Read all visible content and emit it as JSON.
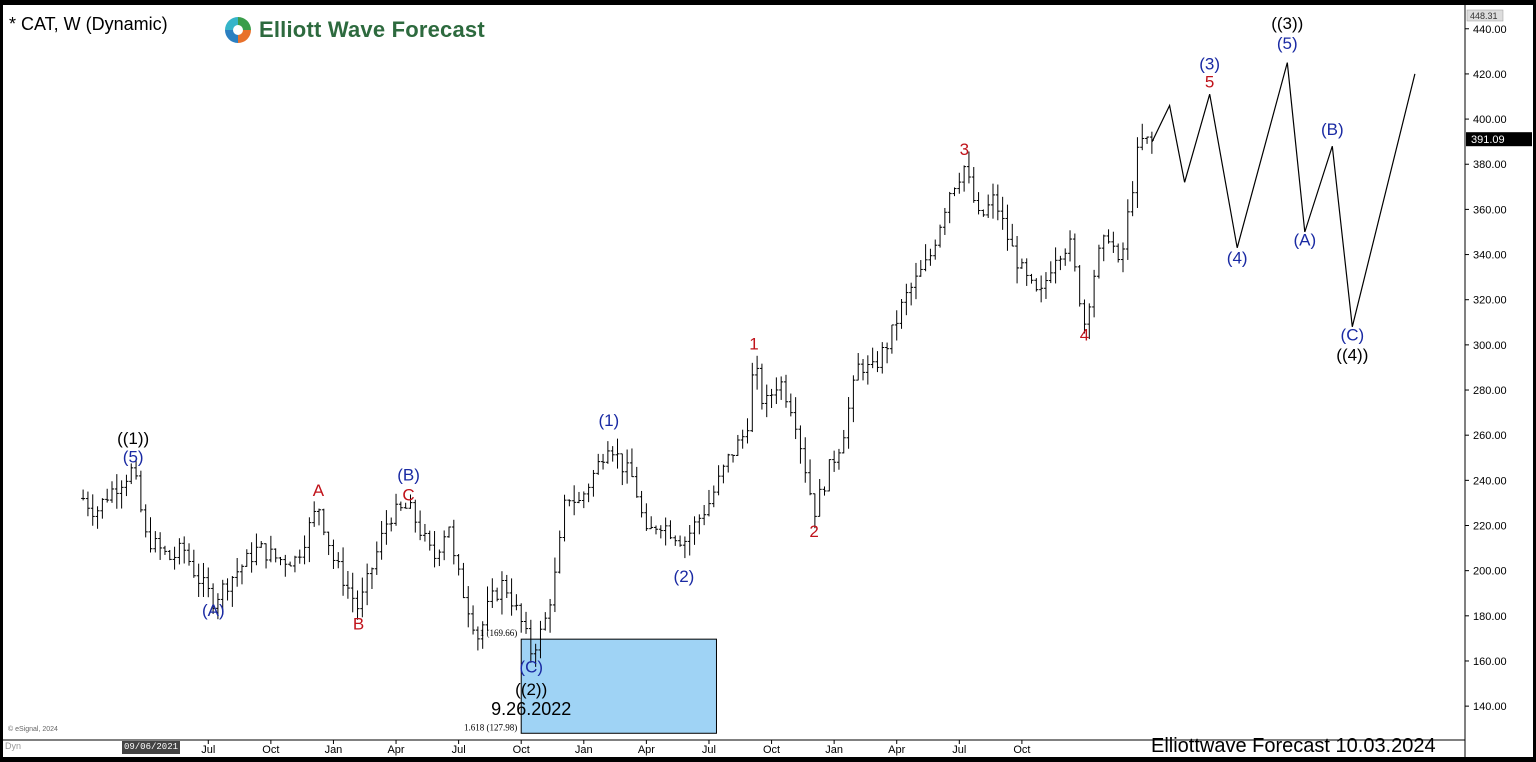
{
  "header": {
    "symbol": "* CAT, W (Dynamic)",
    "logo_text": "Elliott Wave Forecast"
  },
  "footer": {
    "label": "Elliottwave Forecast 10.03.2024",
    "esignal": "© eSignal, 2024",
    "dyn": "Dyn",
    "cursor_date": "09/06/2021"
  },
  "colors": {
    "blue": "#1a2aa3",
    "red": "#c0121a",
    "black": "#000000",
    "zone_fill": "#9fd3f5"
  },
  "chart_data": {
    "type": "line",
    "title": "",
    "ylim": [
      125,
      448.31
    ],
    "y_ticks": [
      140,
      160,
      180,
      200,
      220,
      240,
      260,
      280,
      300,
      320,
      340,
      360,
      380,
      400,
      420,
      440
    ],
    "x_ticks": [
      {
        "label": "Jul",
        "t": 0.5
      },
      {
        "label": "Oct",
        "t": 0.75
      },
      {
        "label": "Jan",
        "t": 1.0
      },
      {
        "label": "Apr",
        "t": 1.25
      },
      {
        "label": "Jul",
        "t": 1.5
      },
      {
        "label": "Oct",
        "t": 1.75
      },
      {
        "label": "Jan",
        "t": 2.0
      },
      {
        "label": "Apr",
        "t": 2.25
      },
      {
        "label": "Jul",
        "t": 2.5
      },
      {
        "label": "Oct",
        "t": 2.75
      },
      {
        "label": "Jan",
        "t": 3.0
      },
      {
        "label": "Apr",
        "t": 3.25
      },
      {
        "label": "Jul",
        "t": 3.5
      },
      {
        "label": "Oct",
        "t": 3.75
      }
    ],
    "price_top_label": "448.31",
    "last_price": 391.09,
    "last_price_label": "391.09",
    "price_path": [
      [
        0.0,
        232
      ],
      [
        0.05,
        226
      ],
      [
        0.1,
        234
      ],
      [
        0.2,
        245
      ],
      [
        0.25,
        215
      ],
      [
        0.35,
        205
      ],
      [
        0.4,
        210
      ],
      [
        0.45,
        198
      ],
      [
        0.52,
        187
      ],
      [
        0.6,
        198
      ],
      [
        0.7,
        210
      ],
      [
        0.78,
        205
      ],
      [
        0.85,
        205
      ],
      [
        0.94,
        229
      ],
      [
        1.0,
        205
      ],
      [
        1.1,
        183
      ],
      [
        1.15,
        200
      ],
      [
        1.22,
        224
      ],
      [
        1.3,
        228
      ],
      [
        1.32,
        224
      ],
      [
        1.4,
        205
      ],
      [
        1.46,
        222
      ],
      [
        1.48,
        205
      ],
      [
        1.52,
        190
      ],
      [
        1.58,
        170
      ],
      [
        1.62,
        185
      ],
      [
        1.68,
        195
      ],
      [
        1.74,
        180
      ],
      [
        1.79,
        164
      ],
      [
        1.84,
        175
      ],
      [
        1.89,
        200
      ],
      [
        1.93,
        234
      ],
      [
        1.98,
        230
      ],
      [
        2.05,
        245
      ],
      [
        2.1,
        258
      ],
      [
        2.15,
        247
      ],
      [
        2.2,
        240
      ],
      [
        2.25,
        215
      ],
      [
        2.3,
        222
      ],
      [
        2.4,
        213
      ],
      [
        2.5,
        230
      ],
      [
        2.58,
        250
      ],
      [
        2.65,
        262
      ],
      [
        2.68,
        292
      ],
      [
        2.72,
        272
      ],
      [
        2.78,
        285
      ],
      [
        2.84,
        270
      ],
      [
        2.88,
        248
      ],
      [
        2.92,
        226
      ],
      [
        2.98,
        245
      ],
      [
        3.03,
        258
      ],
      [
        3.1,
        292
      ],
      [
        3.15,
        288
      ],
      [
        3.22,
        302
      ],
      [
        3.28,
        320
      ],
      [
        3.38,
        338
      ],
      [
        3.46,
        368
      ],
      [
        3.52,
        379
      ],
      [
        3.58,
        355
      ],
      [
        3.64,
        365
      ],
      [
        3.7,
        345
      ],
      [
        3.76,
        330
      ],
      [
        3.82,
        320
      ],
      [
        3.88,
        340
      ],
      [
        3.94,
        345
      ],
      [
        4.0,
        310
      ],
      [
        4.05,
        338
      ],
      [
        4.1,
        350
      ],
      [
        4.14,
        332
      ],
      [
        4.18,
        362
      ],
      [
        4.22,
        390
      ],
      [
        4.27,
        390
      ]
    ],
    "projection_path": [
      [
        4.27,
        390
      ],
      [
        4.34,
        406
      ],
      [
        4.4,
        372
      ],
      [
        4.5,
        411
      ],
      [
        4.61,
        343
      ],
      [
        4.81,
        425
      ],
      [
        4.88,
        350
      ],
      [
        4.99,
        388
      ],
      [
        5.07,
        308
      ],
      [
        5.32,
        420
      ]
    ],
    "fib_zone": {
      "t_start": 1.75,
      "t_end": 2.53,
      "top": 169.66,
      "bottom": 127.98,
      "top_label": "1 (169.66)",
      "bottom_label": "1.618 (127.98)"
    },
    "annotations": [
      {
        "text": "((1))",
        "t": 0.2,
        "y": 256,
        "color": "black"
      },
      {
        "text": "(5)",
        "t": 0.2,
        "y": 248,
        "color": "blue"
      },
      {
        "text": "(A)",
        "t": 0.52,
        "y": 180,
        "color": "blue"
      },
      {
        "text": "A",
        "t": 0.94,
        "y": 233,
        "color": "red"
      },
      {
        "text": "B",
        "t": 1.1,
        "y": 174,
        "color": "red"
      },
      {
        "text": "(B)",
        "t": 1.3,
        "y": 240,
        "color": "blue"
      },
      {
        "text": "C",
        "t": 1.3,
        "y": 231,
        "color": "red"
      },
      {
        "text": "(C)",
        "t": 1.79,
        "y": 155,
        "color": "blue"
      },
      {
        "text": "((2))",
        "t": 1.79,
        "y": 145,
        "color": "black"
      },
      {
        "text": "9.26.2022",
        "t": 1.79,
        "y": 136,
        "color": "black"
      },
      {
        "text": "(1)",
        "t": 2.1,
        "y": 264,
        "color": "blue"
      },
      {
        "text": "(2)",
        "t": 2.4,
        "y": 195,
        "color": "blue"
      },
      {
        "text": "1",
        "t": 2.68,
        "y": 298,
        "color": "red"
      },
      {
        "text": "2",
        "t": 2.92,
        "y": 215,
        "color": "red"
      },
      {
        "text": "3",
        "t": 3.52,
        "y": 384,
        "color": "red"
      },
      {
        "text": "4",
        "t": 4.0,
        "y": 302,
        "color": "red"
      },
      {
        "text": "(3)",
        "t": 4.5,
        "y": 422,
        "color": "blue"
      },
      {
        "text": "5",
        "t": 4.5,
        "y": 414,
        "color": "red"
      },
      {
        "text": "(4)",
        "t": 4.61,
        "y": 336,
        "color": "blue"
      },
      {
        "text": "((3))",
        "t": 4.81,
        "y": 440,
        "color": "black"
      },
      {
        "text": "(5)",
        "t": 4.81,
        "y": 431,
        "color": "blue"
      },
      {
        "text": "(A)",
        "t": 4.88,
        "y": 344,
        "color": "blue"
      },
      {
        "text": "(B)",
        "t": 4.99,
        "y": 393,
        "color": "blue"
      },
      {
        "text": "(C)",
        "t": 5.07,
        "y": 302,
        "color": "blue"
      },
      {
        "text": "((4))",
        "t": 5.07,
        "y": 293,
        "color": "black"
      }
    ]
  }
}
